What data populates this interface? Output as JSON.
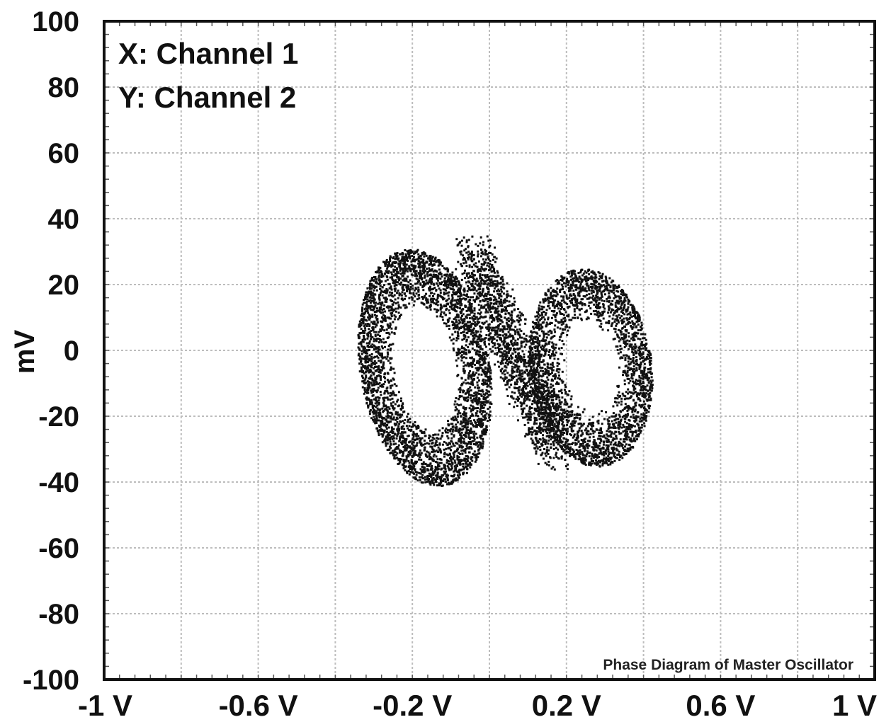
{
  "chart_data": {
    "type": "scatter",
    "title": "",
    "xlabel": "",
    "ylabel": "mV",
    "xlim": [
      -1,
      1
    ],
    "ylim": [
      -100,
      100
    ],
    "grid": true,
    "x_ticks": [
      -1,
      -0.8,
      -0.6,
      -0.4,
      -0.2,
      0,
      0.2,
      0.4,
      0.6,
      0.8,
      1
    ],
    "x_tick_labels": [
      "-1 V",
      "-0.6 V",
      "-0.2 V",
      "0.2 V",
      "0.6 V",
      "1 V"
    ],
    "x_tick_label_values": [
      -1,
      -0.6,
      -0.2,
      0.2,
      0.6,
      1
    ],
    "y_ticks": [
      100,
      80,
      60,
      40,
      20,
      0,
      -20,
      -40,
      -60,
      -80,
      -100
    ],
    "y_tick_labels": [
      "100",
      "80",
      "60",
      "40",
      "20",
      "0",
      "-20",
      "-40",
      "-60",
      "-80",
      "-100"
    ],
    "annotations": [
      "X: Channel 1",
      "Y: Channel 2"
    ],
    "caption": "Phase Diagram of Master Oscillator",
    "attractor": {
      "description_lobes": [
        {
          "center": [
            -0.17,
            -5
          ],
          "outer_radius": [
            0.17,
            36
          ],
          "inner_radius": [
            0.08,
            19
          ]
        },
        {
          "center": [
            0.26,
            -5
          ],
          "outer_radius": [
            0.16,
            30
          ],
          "inner_radius": [
            0.045,
            11
          ]
        }
      ],
      "x_range": [
        -0.37,
        0.45
      ],
      "y_range": [
        -45,
        34
      ]
    },
    "colors": {
      "points": "#111111",
      "grid": "#bdbdbd",
      "frame": "#111111"
    }
  }
}
